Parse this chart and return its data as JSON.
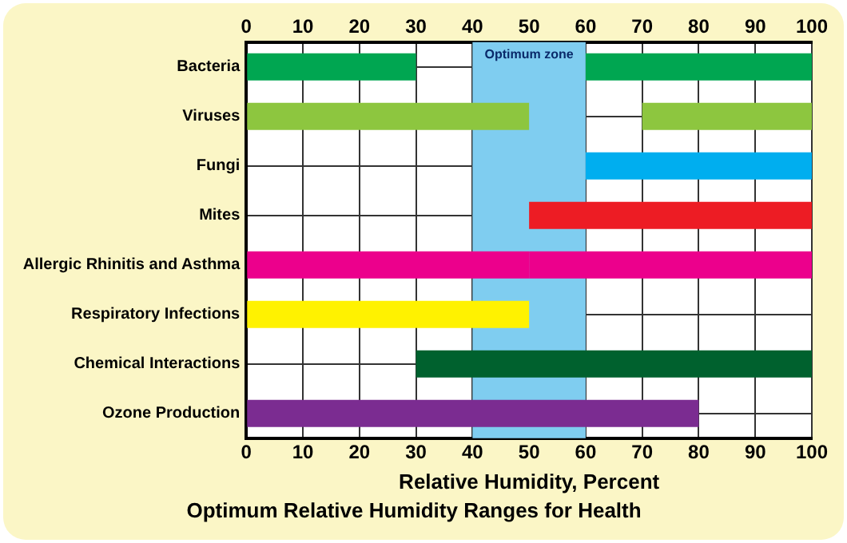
{
  "chart_data": {
    "type": "bar",
    "orientation": "horizontal",
    "title": "Optimum Relative Humidity Ranges for Health",
    "xlabel": "Relative Humidity, Percent",
    "categories": [
      "Bacteria",
      "Viruses",
      "Fungi",
      "Mites",
      "Allergic Rhinitis and Asthma",
      "Respiratory Infections",
      "Chemical Interactions",
      "Ozone Production"
    ],
    "series": [
      {
        "values": [
          30,
          50,
          null,
          null,
          50,
          50,
          null,
          80
        ],
        "colors": [
          "#00a651",
          "#8dc63f",
          null,
          null,
          "#ec008c",
          "#fff200",
          null,
          "#7b2c91"
        ]
      },
      {
        "base": [
          60,
          70,
          60,
          50,
          50,
          null,
          30,
          null
        ],
        "values": [
          40,
          30,
          40,
          50,
          50,
          null,
          70,
          null
        ],
        "colors": [
          "#00a651",
          "#8dc63f",
          "#00aeef",
          "#ed1c24",
          "#ec008c",
          null,
          "#00612e",
          null
        ]
      }
    ],
    "xlim": [
      0,
      100
    ],
    "xticks": [
      0,
      10,
      20,
      30,
      40,
      50,
      60,
      70,
      80,
      90,
      100
    ],
    "x2lim": [
      0,
      100
    ],
    "x2ticks": [
      0,
      10,
      20,
      30,
      40,
      50,
      60,
      70,
      80,
      90,
      100
    ],
    "bands": [
      {
        "axis": "x",
        "from": 40,
        "to": 60,
        "label": "Optimum zone",
        "color": "#7fcdf0"
      }
    ],
    "grid": true,
    "legend": false
  }
}
